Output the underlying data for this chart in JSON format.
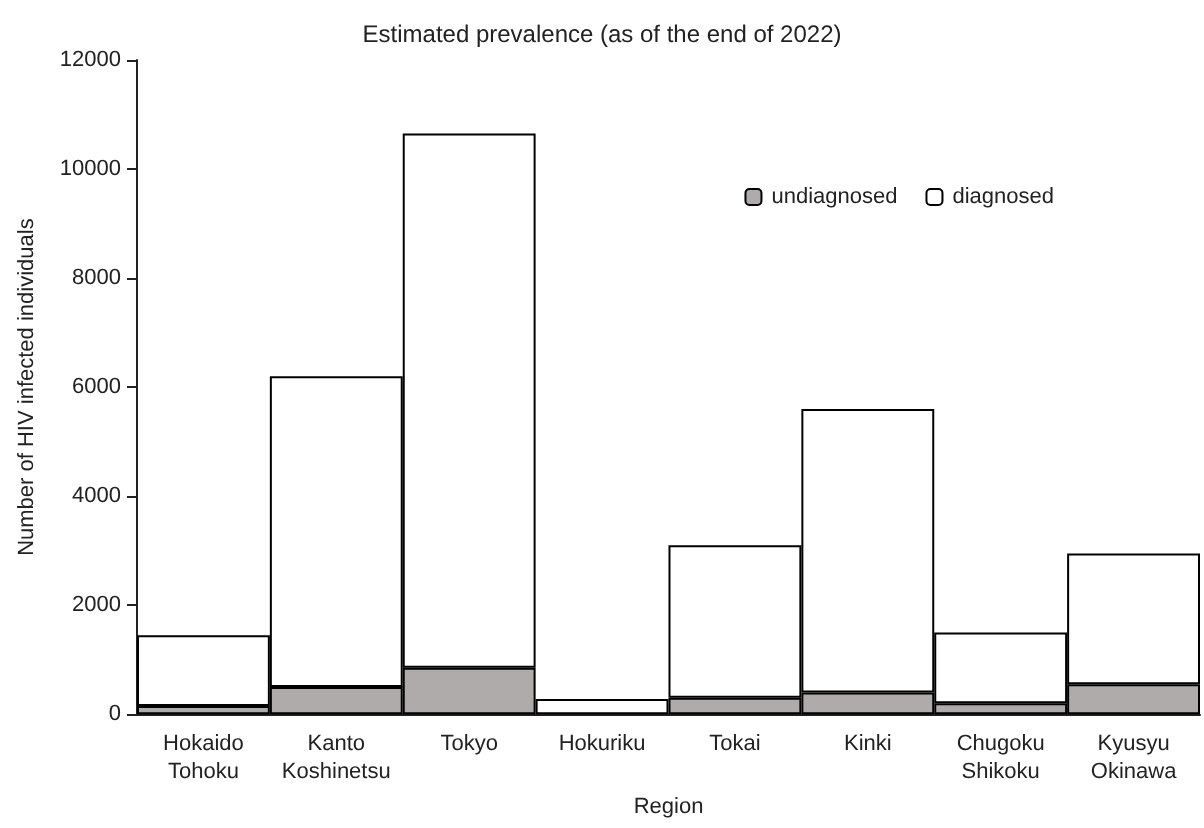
{
  "chart_data": {
    "type": "bar",
    "title": "Estimated prevalence (as of the end of 2022)",
    "xlabel": "Region",
    "ylabel": "Number of HIV infected individuals",
    "categories": [
      "Hokaido\nTohoku",
      "Kanto\nKoshinetsu",
      "Tokyo",
      "Hokuriku",
      "Tokai",
      "Kinki",
      "Chugoku\nShikoku",
      "Kyusyu\nOkinawa"
    ],
    "series": [
      {
        "name": "undiagnosed",
        "color": "#b0abab",
        "values": [
          150,
          500,
          850,
          null,
          300,
          400,
          200,
          550
        ]
      },
      {
        "name": "diagnosed",
        "color": "#ffffff",
        "values": [
          1300,
          5700,
          9800,
          280,
          2800,
          5200,
          1300,
          2400
        ]
      }
    ],
    "stacked": true,
    "ylim": [
      0,
      12000
    ],
    "yticks": [
      0,
      2000,
      4000,
      6000,
      8000,
      10000,
      12000
    ],
    "grid": false,
    "legend": "top right"
  }
}
